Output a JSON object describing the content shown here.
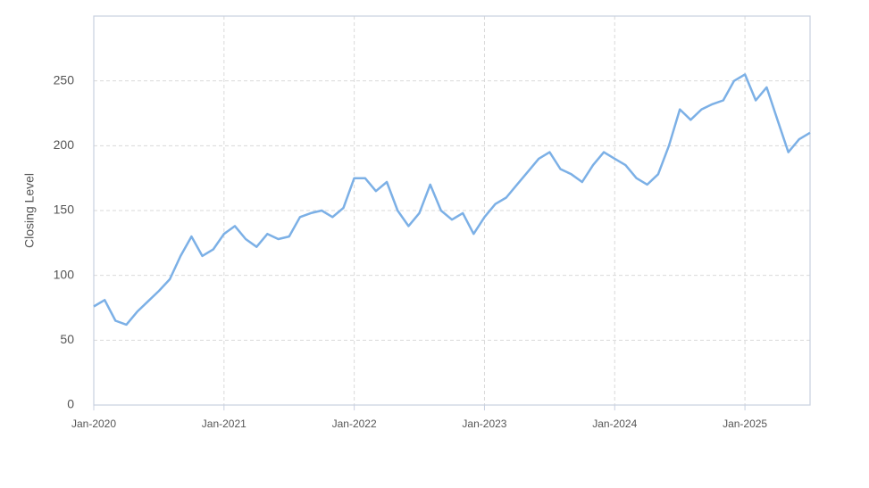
{
  "chart_data": {
    "type": "line",
    "y_label": "Closing Level",
    "x": [
      "2020-01",
      "2020-02",
      "2020-03",
      "2020-04",
      "2020-05",
      "2020-06",
      "2020-07",
      "2020-08",
      "2020-09",
      "2020-10",
      "2020-11",
      "2020-12",
      "2021-01",
      "2021-02",
      "2021-03",
      "2021-04",
      "2021-05",
      "2021-06",
      "2021-07",
      "2021-08",
      "2021-09",
      "2021-10",
      "2021-11",
      "2021-12",
      "2022-01",
      "2022-02",
      "2022-03",
      "2022-04",
      "2022-05",
      "2022-06",
      "2022-07",
      "2022-08",
      "2022-09",
      "2022-10",
      "2022-11",
      "2022-12",
      "2023-01",
      "2023-02",
      "2023-03",
      "2023-04",
      "2023-05",
      "2023-06",
      "2023-07",
      "2023-08",
      "2023-09",
      "2023-10",
      "2023-11",
      "2023-12",
      "2024-01",
      "2024-02",
      "2024-03",
      "2024-04",
      "2024-05",
      "2024-06",
      "2024-07",
      "2024-08",
      "2024-09",
      "2024-10",
      "2024-11",
      "2024-12",
      "2025-01",
      "2025-02",
      "2025-03",
      "2025-04",
      "2025-05",
      "2025-06",
      "2025-07"
    ],
    "series": [
      {
        "name": "Closing Level",
        "color": "#7cb0e6",
        "values": [
          76,
          81,
          65,
          62,
          72,
          80,
          88,
          97,
          115,
          130,
          115,
          120,
          132,
          138,
          128,
          122,
          132,
          128,
          130,
          145,
          148,
          150,
          145,
          152,
          175,
          175,
          165,
          172,
          150,
          138,
          148,
          170,
          150,
          143,
          148,
          132,
          145,
          155,
          160,
          170,
          180,
          190,
          195,
          182,
          178,
          172,
          185,
          195,
          190,
          185,
          175,
          170,
          178,
          200,
          228,
          220,
          228,
          232,
          235,
          250,
          255,
          235,
          245,
          220,
          195,
          205,
          210
        ]
      }
    ],
    "xlim": [
      "2020-01",
      "2025-07"
    ],
    "xticks": [
      {
        "value": "2020-01",
        "label": "Jan-2020"
      },
      {
        "value": "2021-01",
        "label": "Jan-2021"
      },
      {
        "value": "2022-01",
        "label": "Jan-2022"
      },
      {
        "value": "2023-01",
        "label": "Jan-2023"
      },
      {
        "value": "2024-01",
        "label": "Jan-2024"
      },
      {
        "value": "2025-01",
        "label": "Jan-2025"
      }
    ],
    "ylim": [
      0,
      300
    ],
    "yticks": [
      0,
      50,
      100,
      150,
      200,
      250
    ],
    "grid": true
  }
}
